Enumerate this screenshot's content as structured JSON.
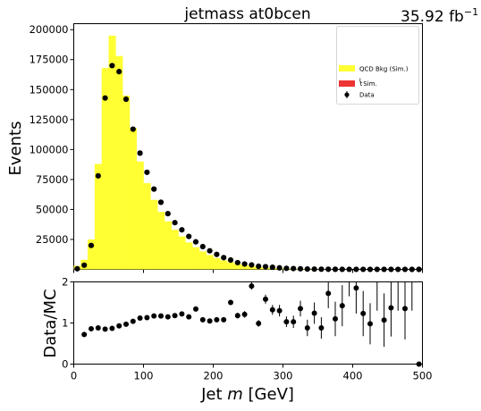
{
  "chart_data": [
    {
      "type": "bar",
      "title": "jetmass  at0bcen",
      "lumi_base": "35.92 fb",
      "lumi_exp": "−1",
      "xlabel_prefix": "Jet ",
      "xlabel_var": "m",
      "xlabel_suffix": " [GeV]",
      "ylabel": "Events",
      "xlim": [
        0,
        500
      ],
      "ylim": [
        0,
        205000
      ],
      "xticks": [
        "0",
        "100",
        "200",
        "300",
        "400",
        "500"
      ],
      "yticks": [
        "25000",
        "50000",
        "75000",
        "100000",
        "125000",
        "150000",
        "175000",
        "200000"
      ],
      "bin_width": 10,
      "colors": {
        "qcd": "#ffff33",
        "ttbar": "#ee3333",
        "data": "#000000"
      },
      "legend_position": "top-right",
      "legend": [
        {
          "label": "QCD Bkg (Sim.)"
        },
        {
          "label_prefix": "t",
          "label_suffix": " Sim."
        },
        {
          "label": "Data"
        }
      ],
      "series": [
        {
          "name": "QCD Bkg (Sim.)",
          "x": [
            5,
            15,
            25,
            35,
            45,
            55,
            65,
            75,
            85,
            95,
            105,
            115,
            125,
            135,
            145,
            155,
            165,
            175,
            185,
            195,
            205,
            215,
            225,
            235,
            245,
            255,
            265,
            275,
            285,
            295,
            305,
            315,
            325,
            335,
            345,
            355,
            365,
            375,
            385,
            395,
            405,
            415,
            425,
            435,
            445,
            455,
            465,
            475,
            485,
            495
          ],
          "values": [
            3000,
            8000,
            25000,
            88000,
            168000,
            195000,
            178000,
            145000,
            118000,
            90000,
            72000,
            58000,
            48000,
            40000,
            33000,
            27500,
            22500,
            18500,
            15000,
            12000,
            9500,
            7500,
            5800,
            4500,
            3400,
            2600,
            2000,
            1500,
            1150,
            850,
            650,
            480,
            360,
            270,
            200,
            150,
            110,
            80,
            60,
            45,
            35,
            26,
            20,
            15,
            12,
            9,
            7,
            5,
            4,
            3
          ]
        },
        {
          "name": "tt̄ Sim.",
          "x": [
            5,
            15,
            25,
            35,
            45,
            55,
            65,
            75,
            85,
            95,
            105,
            115,
            125,
            135,
            145,
            155,
            165,
            175,
            185,
            195,
            205,
            215,
            225,
            235,
            245,
            255,
            265,
            275,
            285,
            295,
            305,
            315,
            325,
            335,
            345,
            355,
            365,
            375,
            385,
            395,
            405,
            415,
            425,
            435,
            445,
            455,
            465,
            475,
            485,
            495
          ],
          "values": [
            0,
            0,
            0,
            0,
            0,
            0,
            0,
            0,
            0,
            0,
            0,
            0,
            0,
            0,
            0,
            0,
            0,
            0,
            0,
            0,
            0,
            0,
            0,
            0,
            0,
            0,
            0,
            0,
            0,
            0,
            0,
            0,
            0,
            0,
            0,
            0,
            0,
            0,
            0,
            0,
            0,
            0,
            0,
            0,
            0,
            0,
            0,
            0,
            0,
            0
          ]
        },
        {
          "name": "Data",
          "x": [
            5,
            15,
            25,
            35,
            45,
            55,
            65,
            75,
            85,
            95,
            105,
            115,
            125,
            135,
            145,
            155,
            165,
            175,
            185,
            195,
            205,
            215,
            225,
            235,
            245,
            255,
            265,
            275,
            285,
            295,
            305,
            315,
            325,
            335,
            345,
            355,
            365,
            375,
            385,
            395,
            405,
            415,
            425,
            435,
            445,
            455,
            465,
            475,
            485,
            495
          ],
          "values": [
            500,
            3500,
            20000,
            78000,
            143000,
            170000,
            165000,
            142000,
            117000,
            97000,
            81000,
            67000,
            56000,
            46500,
            39000,
            33000,
            27500,
            23000,
            19000,
            15500,
            12500,
            9800,
            7800,
            5600,
            4500,
            3700,
            2600,
            2300,
            1800,
            1300,
            900,
            700,
            500,
            300,
            250,
            150,
            110,
            90,
            60,
            50,
            40,
            30,
            20,
            15,
            10,
            8,
            6,
            4,
            3,
            2
          ]
        }
      ]
    },
    {
      "type": "scatter",
      "xlabel_prefix": "Jet ",
      "xlabel_var": "m",
      "xlabel_suffix": " [GeV]",
      "ylabel": "Data/MC",
      "xlim": [
        0,
        500
      ],
      "ylim": [
        0,
        2
      ],
      "xticks": [
        "0",
        "100",
        "200",
        "300",
        "400",
        "500"
      ],
      "yticks": [
        "0",
        "1",
        "2"
      ],
      "series": [
        {
          "name": "Data/MC",
          "x": [
            15,
            25,
            35,
            45,
            55,
            65,
            75,
            85,
            95,
            105,
            115,
            125,
            135,
            145,
            155,
            165,
            175,
            185,
            195,
            205,
            215,
            225,
            235,
            245,
            255,
            265,
            275,
            285,
            295,
            305,
            315,
            325,
            335,
            345,
            355,
            365,
            375,
            385,
            395,
            405,
            415,
            425,
            435,
            445,
            455,
            465,
            475,
            485,
            495
          ],
          "y": [
            0.72,
            0.86,
            0.88,
            0.85,
            0.87,
            0.93,
            0.97,
            1.04,
            1.12,
            1.13,
            1.17,
            1.17,
            1.15,
            1.18,
            1.22,
            1.15,
            1.34,
            1.08,
            1.05,
            1.08,
            1.08,
            1.5,
            1.18,
            1.21,
            1.9,
            0.99,
            1.58,
            1.32,
            1.3,
            1.03,
            1.03,
            1.35,
            0.88,
            1.24,
            0.88,
            1.72,
            1.1,
            1.42,
            2.2,
            1.85,
            1.23,
            0.98,
            2.2,
            1.07,
            1.37,
            2.2,
            1.35,
            2.2,
            0.0
          ],
          "err": [
            0.02,
            0.01,
            0.01,
            0.01,
            0.01,
            0.01,
            0.01,
            0.01,
            0.01,
            0.01,
            0.01,
            0.01,
            0.02,
            0.02,
            0.02,
            0.02,
            0.03,
            0.03,
            0.03,
            0.04,
            0.05,
            0.06,
            0.07,
            0.08,
            0.09,
            0.08,
            0.11,
            0.12,
            0.14,
            0.13,
            0.15,
            0.19,
            0.2,
            0.26,
            0.26,
            0.36,
            0.42,
            0.5,
            0.55,
            0.62,
            0.55,
            0.5,
            0.9,
            0.65,
            0.7,
            0.9,
            0.75,
            0.9,
            0.05
          ]
        }
      ]
    }
  ]
}
